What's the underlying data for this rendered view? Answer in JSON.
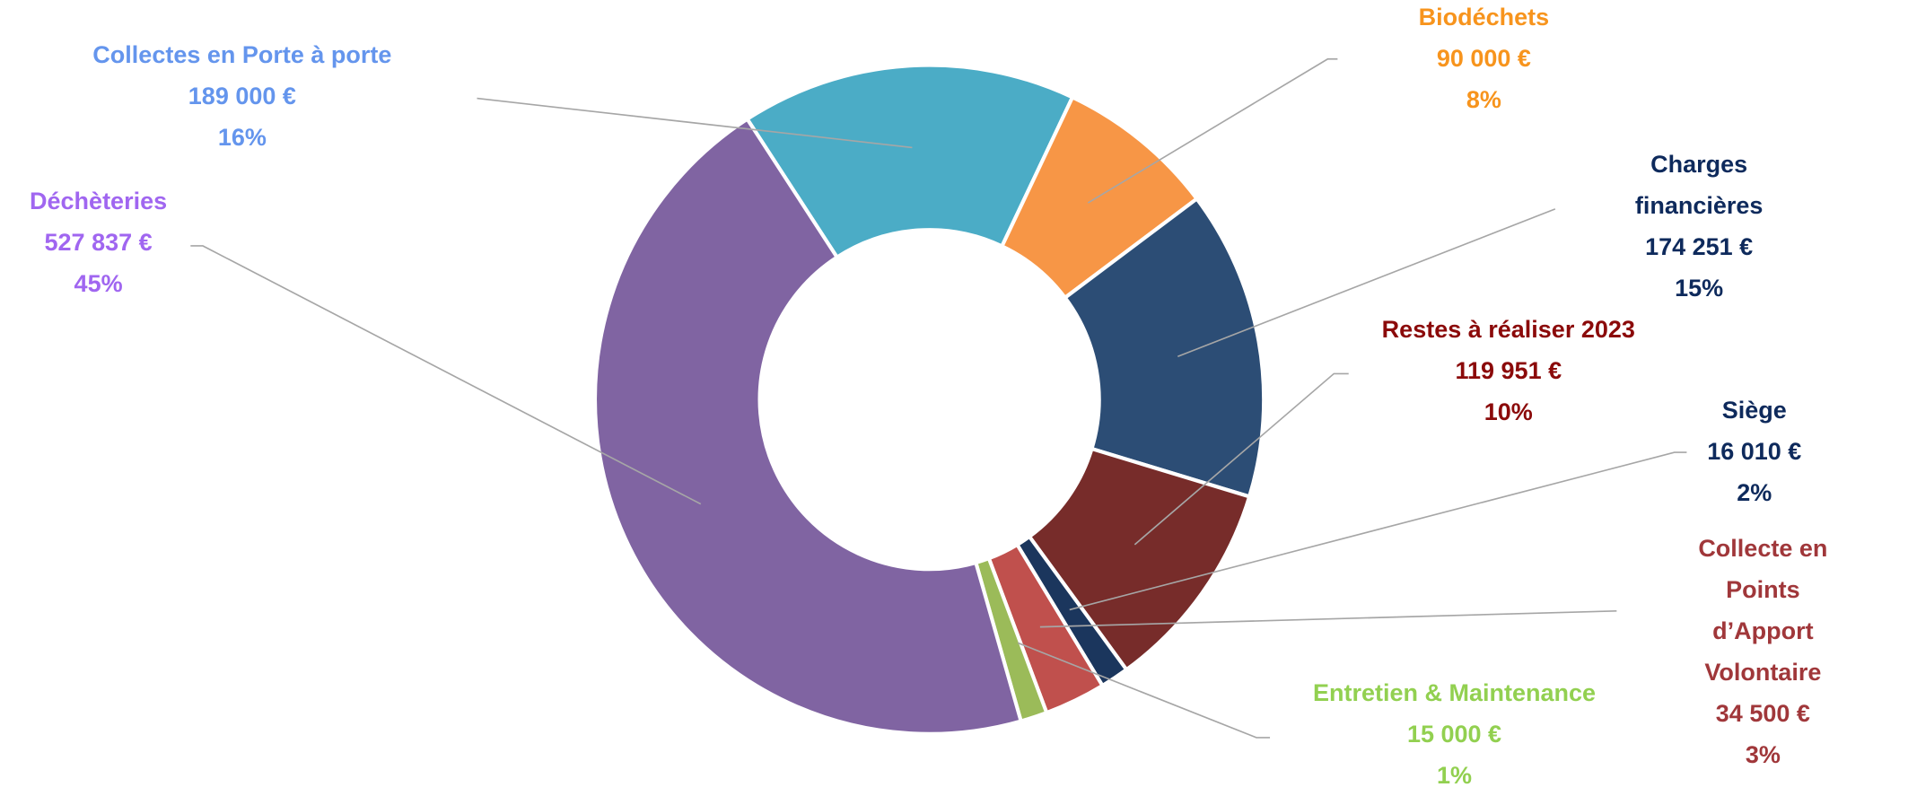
{
  "chart_data": {
    "type": "donut",
    "categories": [
      "Collectes en Porte à porte",
      "Biodéchets",
      "Charges financières",
      "Restes à réaliser 2023",
      "Siège",
      "Collecte en Points\nd’Apport Volontaire",
      "Entretien & Maintenance",
      "Déchèteries"
    ],
    "values": [
      189000,
      90000,
      174251,
      119951,
      16010,
      34500,
      15000,
      527837
    ],
    "value_labels": [
      "189 000 €",
      "90 000 €",
      "174 251 €",
      "119 951 €",
      "16 010 €",
      "34 500 €",
      "15 000 €",
      "527 837 €"
    ],
    "percent_labels": [
      "16%",
      "8%",
      "15%",
      "10%",
      "2%",
      "3%",
      "1%",
      "45%"
    ],
    "colors": [
      "#4bacc6",
      "#f79646",
      "#2c4d75",
      "#772c2a",
      "#1b365d",
      "#c0504d",
      "#9bbb59",
      "#8064a2"
    ],
    "label_colors": [
      "#6495ed",
      "#f7941d",
      "#0e2a5c",
      "#8b0a0a",
      "#0e2a5c",
      "#a0373a",
      "#92d050",
      "#a066f0"
    ]
  }
}
